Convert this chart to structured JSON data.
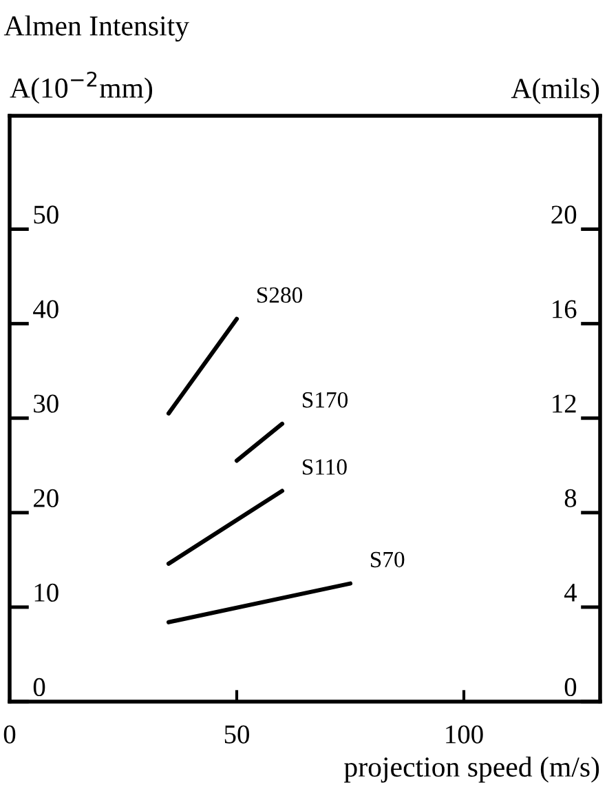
{
  "chart_data": {
    "type": "line",
    "title": "Almen Intensity",
    "xlabel": "projection speed (m/s)",
    "ylabel": "A(10$^{−2}$mm)",
    "y2label": "A(mils)",
    "xlim": [
      0,
      130
    ],
    "xticks": [
      0,
      50,
      100
    ],
    "ylim": [
      0,
      62
    ],
    "yticks": [
      0,
      10,
      20,
      30,
      40,
      50
    ],
    "y2lim": [
      0,
      24.8
    ],
    "y2ticks": [
      0,
      4,
      8,
      12,
      16,
      20
    ],
    "grid": false,
    "legend": false,
    "marker": "none",
    "line_style": "solid",
    "series": [
      {
        "name": "S280",
        "color": "#000000",
        "x": [
          35,
          50
        ],
        "values": [
          30.5,
          40.5
        ]
      },
      {
        "name": "S170",
        "color": "#000000",
        "x": [
          50,
          60
        ],
        "values": [
          25.5,
          29.4
        ]
      },
      {
        "name": "S110",
        "color": "#000000",
        "x": [
          35,
          60
        ],
        "values": [
          14.6,
          22.3
        ]
      },
      {
        "name": "S70",
        "color": "#000000",
        "x": [
          35,
          75
        ],
        "values": [
          8.4,
          12.5
        ]
      }
    ]
  }
}
